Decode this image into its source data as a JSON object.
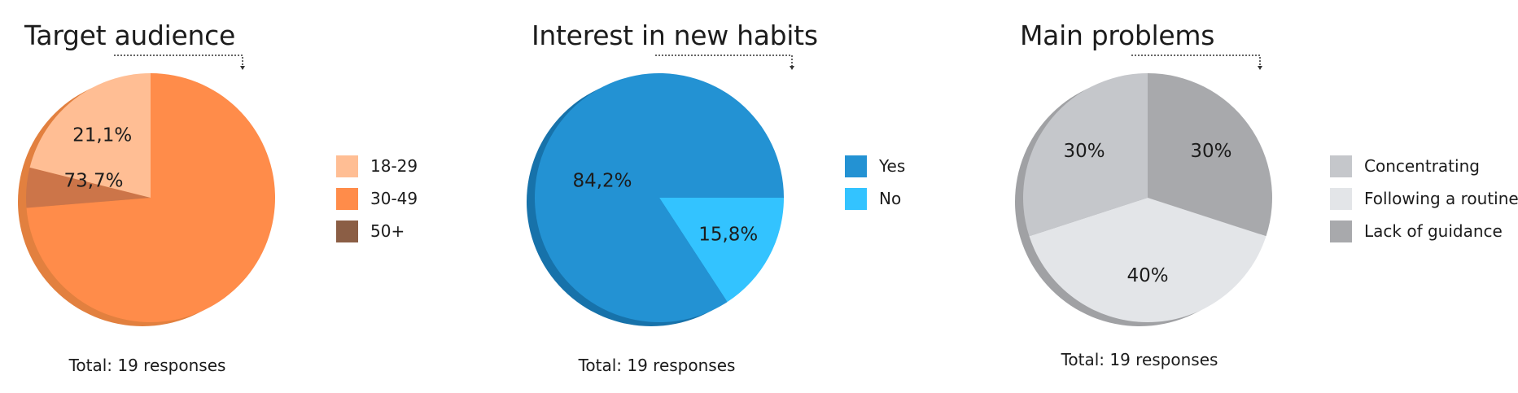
{
  "chart_data": [
    {
      "type": "pie",
      "title": "Target audience",
      "categories": [
        "18-29",
        "30-49",
        "50+"
      ],
      "values": [
        21.1,
        73.7,
        5.2
      ],
      "value_labels": [
        "21,1%",
        "73,7%",
        ""
      ],
      "colors": [
        "#FFBE94",
        "#FF8C4A",
        "#CC7549"
      ],
      "legend_colors": [
        "#FFBE94",
        "#FF8C4A",
        "#8B5E45"
      ],
      "shadow_color": "#E2803F",
      "footer": "Total: 19 responses",
      "legend_position": "right"
    },
    {
      "type": "pie",
      "title": "Interest in new habits",
      "categories": [
        "Yes",
        "No"
      ],
      "values": [
        84.2,
        15.8
      ],
      "value_labels": [
        "84,2%",
        "15,8%"
      ],
      "colors": [
        "#2392D3",
        "#33C3FF"
      ],
      "legend_colors": [
        "#2392D3",
        "#33C3FF"
      ],
      "shadow_color": "#1772AA",
      "footer": "Total: 19 responses",
      "legend_position": "right"
    },
    {
      "type": "pie",
      "title": "Main problems",
      "categories": [
        "Concentrating",
        "Following a routine",
        "Lack of guidance"
      ],
      "values": [
        30,
        40,
        30
      ],
      "value_labels": [
        "30%",
        "40%",
        "30%"
      ],
      "colors": [
        "#C5C7CB",
        "#E3E5E8",
        "#A8A9AC"
      ],
      "legend_colors": [
        "#C5C7CB",
        "#E3E5E8",
        "#A8A9AC"
      ],
      "shadow_color": "#A0A1A4",
      "footer": "Total: 19 responses",
      "legend_position": "right"
    }
  ]
}
